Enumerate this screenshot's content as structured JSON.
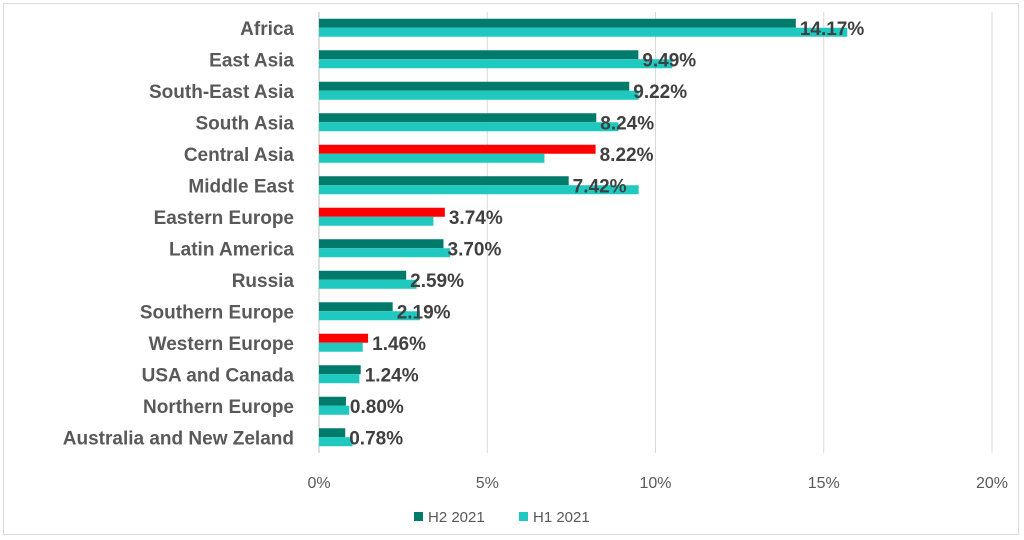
{
  "chart_data": {
    "type": "bar",
    "orientation": "horizontal",
    "categories": [
      "Africa",
      "East Asia",
      "South-East Asia",
      "South Asia",
      "Central Asia",
      "Middle East",
      "Eastern Europe",
      "Latin America",
      "Russia",
      "Southern Europe",
      "Western Europe",
      "USA and Canada",
      "Northern Europe",
      "Australia and New Zeland"
    ],
    "series": [
      {
        "name": "H2 2021",
        "color": "#007A6A",
        "highlight_color": "#FF0000",
        "highlighted_categories": [
          "Central Asia",
          "Eastern Europe",
          "Western Europe"
        ],
        "values": [
          14.17,
          9.49,
          9.22,
          8.24,
          8.22,
          7.42,
          3.74,
          3.7,
          2.59,
          2.19,
          1.46,
          1.24,
          0.8,
          0.78
        ],
        "data_labels": [
          "14.17%",
          "9.49%",
          "9.22%",
          "8.24%",
          "8.22%",
          "7.42%",
          "3.74%",
          "3.70%",
          "2.59%",
          "2.19%",
          "1.46%",
          "1.24%",
          "0.80%",
          "0.78%"
        ]
      },
      {
        "name": "H1 2021",
        "color": "#1FC9C0",
        "values": [
          15.7,
          10.5,
          9.5,
          8.9,
          6.7,
          9.5,
          3.4,
          3.9,
          2.9,
          3.0,
          1.3,
          1.2,
          0.9,
          1.0
        ]
      }
    ],
    "xlim": [
      0,
      20
    ],
    "xticks": [
      0,
      5,
      10,
      15,
      20
    ],
    "xtick_labels": [
      "0%",
      "5%",
      "10%",
      "15%",
      "20%"
    ],
    "grid": "vertical",
    "legend": "bottom"
  }
}
